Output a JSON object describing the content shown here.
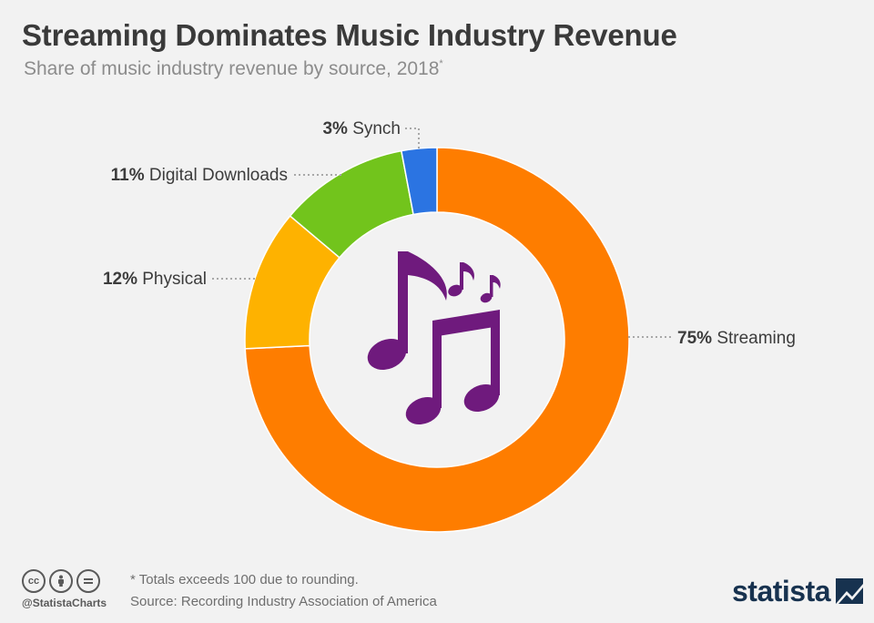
{
  "header": {
    "title": "Streaming Dominates Music Industry Revenue",
    "subtitle": "Share of music industry revenue by source, 2018",
    "subtitle_mark": "*"
  },
  "chart_data": {
    "type": "pie",
    "variant": "donut",
    "title": "Streaming Dominates Music Industry Revenue",
    "subtitle": "Share of music industry revenue by source, 2018*",
    "unit": "%",
    "categories": [
      "Streaming",
      "Physical",
      "Digital Downloads",
      "Synch"
    ],
    "values": [
      75,
      12,
      11,
      3
    ],
    "labels": [
      "75%",
      "12%",
      "11%",
      "3%"
    ],
    "colors": [
      "#fe7d00",
      "#feb200",
      "#72c41c",
      "#2b74e2"
    ],
    "center_icon": "music-notes-icon",
    "center_icon_color": "#6f1a7d"
  },
  "footer": {
    "note": "* Totals exceeds 100 due to rounding.",
    "source": "Source: Recording Industry Association of America",
    "handle": "@StatistaCharts",
    "brand": "statista",
    "license_icons": [
      "cc-icon",
      "by-icon",
      "nd-icon"
    ]
  }
}
